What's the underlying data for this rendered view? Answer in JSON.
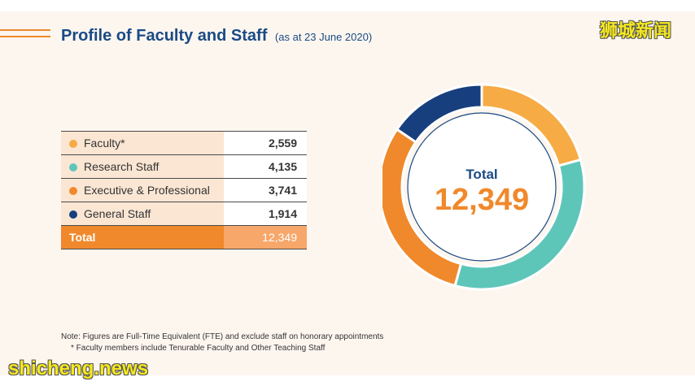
{
  "header": {
    "title": "Profile of Faculty and Staff",
    "date_note": "(as at 23 June 2020)"
  },
  "colors": {
    "faculty": "#f6ab45",
    "research": "#5dc6b9",
    "executive": "#f0892b",
    "general": "#173f7e"
  },
  "chart_data": {
    "type": "pie",
    "categories": [
      "Faculty*",
      "Research Staff",
      "Executive & Professional",
      "General Staff"
    ],
    "values": [
      2559,
      4135,
      3741,
      1914
    ],
    "display_values": [
      "2,559",
      "4,135",
      "3,741",
      "1,914"
    ],
    "center_label": "Total",
    "total": "12,349",
    "total_row_label": "Total"
  },
  "notes": {
    "line1": "Note: Figures are Full-Time Equivalent (FTE) and exclude staff on honorary appointments",
    "line2": "*    Faculty members include Tenurable Faculty and Other Teaching Staff"
  },
  "watermarks": {
    "top": "狮城新闻",
    "bottom": "shicheng.news"
  }
}
